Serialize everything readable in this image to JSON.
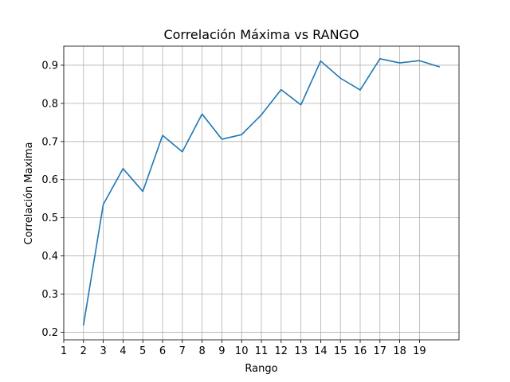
{
  "chart_data": {
    "type": "line",
    "title": "Correlación Máxima vs RANGO",
    "xlabel": "Rango",
    "ylabel": "Correlación Maxima",
    "xlim": [
      1,
      21
    ],
    "ylim": [
      0.18,
      0.95
    ],
    "xticks": [
      1,
      2,
      3,
      4,
      5,
      6,
      7,
      8,
      9,
      10,
      11,
      12,
      13,
      14,
      15,
      16,
      17,
      18,
      19
    ],
    "yticks": [
      0.2,
      0.3,
      0.4,
      0.5,
      0.6,
      0.7,
      0.8,
      0.9
    ],
    "grid": true,
    "series": [
      {
        "color": "#1f77b4",
        "x": [
          2,
          3,
          4,
          5,
          6,
          7,
          8,
          9,
          10,
          11,
          12,
          13,
          14,
          15,
          16,
          17,
          18,
          19,
          20
        ],
        "y": [
          0.219,
          0.535,
          0.629,
          0.569,
          0.716,
          0.673,
          0.772,
          0.706,
          0.718,
          0.77,
          0.836,
          0.796,
          0.911,
          0.866,
          0.835,
          0.917,
          0.906,
          0.912,
          0.896
        ]
      }
    ]
  }
}
